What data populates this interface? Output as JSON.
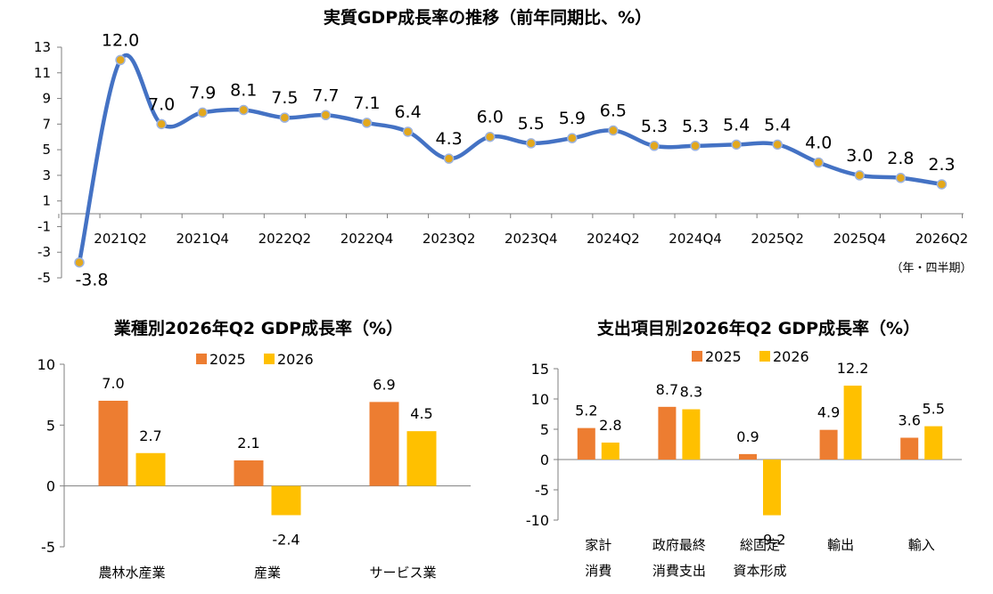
{
  "colors": {
    "line": "#4472C4",
    "marker": "#E3A81D",
    "s2025": "#ED7D31",
    "s2026": "#FFC000"
  },
  "chart_data": [
    {
      "type": "line",
      "title": "実質GDP成長率の推移（前年同期比、%）",
      "x_unit_label": "（年・四半期）",
      "x": [
        "2021Q1",
        "2021Q2",
        "2021Q3",
        "2021Q4",
        "2022Q1",
        "2022Q2",
        "2022Q3",
        "2022Q4",
        "2023Q1",
        "2023Q2",
        "2023Q3",
        "2023Q4",
        "2024Q1",
        "2024Q2",
        "2024Q3",
        "2024Q4",
        "2025Q1",
        "2025Q2",
        "2025Q3",
        "2025Q4",
        "2026Q1",
        "2026Q2"
      ],
      "x_tick_labels": [
        "2021Q2",
        "2021Q4",
        "2022Q2",
        "2022Q4",
        "2023Q2",
        "2023Q4",
        "2024Q2",
        "2024Q4",
        "2025Q2",
        "2025Q4",
        "2026Q2"
      ],
      "values": [
        -3.8,
        12.0,
        7.0,
        7.9,
        8.1,
        7.5,
        7.7,
        7.1,
        6.4,
        4.3,
        6.0,
        5.5,
        5.9,
        6.5,
        5.3,
        5.3,
        5.4,
        5.4,
        4.0,
        3.0,
        2.8,
        2.3
      ],
      "data_labels": [
        "-3.8",
        "12.0",
        "7.0",
        "7.9",
        "8.1",
        "7.5",
        "7.7",
        "7.1",
        "6.4",
        "4.3",
        "6.0",
        "5.5",
        "5.9",
        "6.5",
        "5.3",
        "5.3",
        "5.4",
        "5.4",
        "4.0",
        "3.0",
        "2.8",
        "2.3"
      ],
      "y_ticks": [
        "13",
        "11",
        "9",
        "7",
        "5",
        "3",
        "1",
        "-1",
        "-3",
        "-5"
      ],
      "ylim": [
        -5,
        13
      ],
      "grid": false
    },
    {
      "type": "bar",
      "title": "業種別2026年Q2 GDP成長率（%）",
      "categories": [
        "農林水産業",
        "産業",
        "サービス業"
      ],
      "series": [
        {
          "name": "2025",
          "values": [
            7.0,
            2.1,
            6.9
          ],
          "labels": [
            "7.0",
            "2.1",
            "6.9"
          ]
        },
        {
          "name": "2026",
          "values": [
            2.7,
            -2.4,
            4.5
          ],
          "labels": [
            "2.7",
            "-2.4",
            "4.5"
          ]
        }
      ],
      "y_ticks": [
        "10",
        "5",
        "0",
        "-5"
      ],
      "ylim": [
        -5,
        10
      ],
      "legend": "top"
    },
    {
      "type": "bar",
      "title": "支出項目別2026年Q2 GDP成長率（%）",
      "categories": [
        [
          "家計",
          "消費"
        ],
        [
          "政府最終",
          "消費支出"
        ],
        [
          "総固定",
          "資本形成"
        ],
        [
          "輸出"
        ],
        [
          "輸入"
        ]
      ],
      "series": [
        {
          "name": "2025",
          "values": [
            5.2,
            8.7,
            0.9,
            4.9,
            3.6
          ],
          "labels": [
            "5.2",
            "8.7",
            "0.9",
            "4.9",
            "3.6"
          ]
        },
        {
          "name": "2026",
          "values": [
            2.8,
            8.3,
            -9.2,
            12.2,
            5.5
          ],
          "labels": [
            "2.8",
            "8.3",
            "-9.2",
            "12.2",
            "5.5"
          ]
        }
      ],
      "y_ticks": [
        "15",
        "10",
        "5",
        "0",
        "-5",
        "-10"
      ],
      "ylim": [
        -10,
        15
      ],
      "legend": "top"
    }
  ]
}
